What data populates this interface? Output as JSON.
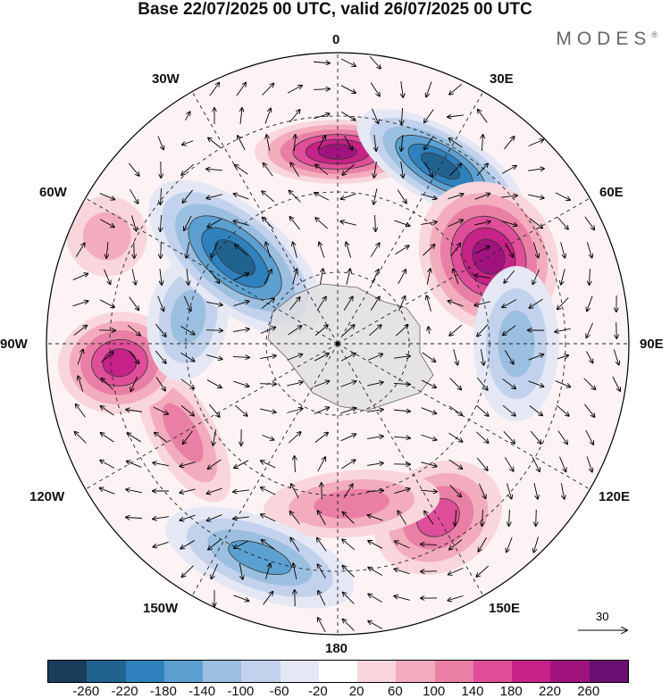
{
  "title": "Base 22/07/2025 00 UTC, valid 26/07/2025 00 UTC",
  "brand": "MODES",
  "brand_mark": "®",
  "longitude_labels": [
    "0",
    "30E",
    "60E",
    "90E",
    "120E",
    "150E",
    "180",
    "150W",
    "120W",
    "90W",
    "60W",
    "30W"
  ],
  "legend": {
    "ticks": [
      "-260",
      "-220",
      "-180",
      "-140",
      "-100",
      "-60",
      "-20",
      "20",
      "60",
      "100",
      "140",
      "180",
      "220",
      "260"
    ],
    "colors": [
      "#1a3d5c",
      "#21638f",
      "#2f81bd",
      "#5ba0d0",
      "#9bbfe0",
      "#c3d2ec",
      "#e5e8f4",
      "#ffffff",
      "#f8d6dc",
      "#f2acbd",
      "#ea7fa6",
      "#e04e9a",
      "#c62287",
      "#a0137e",
      "#6a0f73"
    ]
  },
  "reference_vector": "30",
  "anomaly_centers": [
    {
      "sign": "positive",
      "value": 260,
      "lon": 0
    },
    {
      "sign": "negative",
      "value": -260,
      "lon": 30
    },
    {
      "sign": "positive",
      "value": 260,
      "lon": 60
    },
    {
      "sign": "negative",
      "value": -120,
      "lon": 90
    },
    {
      "sign": "positive",
      "value": 180,
      "lon": 150
    },
    {
      "sign": "positive",
      "value": 140,
      "lon": 175
    },
    {
      "sign": "negative",
      "value": -180,
      "lon": -160
    },
    {
      "sign": "positive",
      "value": 140,
      "lon": -120
    },
    {
      "sign": "positive",
      "value": 220,
      "lon": -95
    },
    {
      "sign": "negative",
      "value": -140,
      "lon": -80
    },
    {
      "sign": "negative",
      "value": -260,
      "lon": -50
    },
    {
      "sign": "positive",
      "value": 100,
      "lon": -65
    }
  ]
}
